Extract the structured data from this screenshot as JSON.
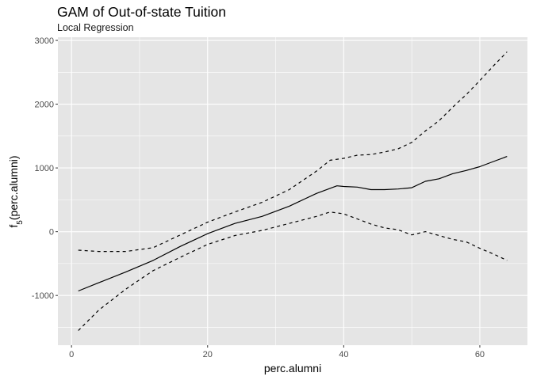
{
  "chart_data": {
    "type": "line",
    "title": "GAM of Out-of-state Tuition",
    "subtitle": "Local Regression",
    "xlabel": "perc.alumni",
    "ylabel": {
      "prefix": "f",
      "subscript": "5",
      "suffix": "(perc.alumni)"
    },
    "xlim": [
      -2,
      67
    ],
    "ylim": [
      -1780,
      3050
    ],
    "x_ticks": [
      0,
      20,
      40,
      60
    ],
    "x_tick_labels": [
      "0",
      "20",
      "40",
      "60"
    ],
    "y_ticks": [
      -1000,
      0,
      1000,
      2000,
      3000
    ],
    "y_tick_labels": [
      "-1000",
      "0",
      "1000",
      "2000",
      "3000"
    ],
    "grid": true,
    "legend": "none",
    "colors": {
      "panel": "#e5e5e5",
      "grid": "#ffffff",
      "line": "#000000"
    },
    "series": [
      {
        "style": "solid",
        "x": [
          1,
          4,
          8,
          12,
          16,
          20,
          24,
          28,
          32,
          36,
          39,
          40,
          42,
          44,
          46,
          48,
          50,
          52,
          54,
          56,
          58,
          60,
          62,
          64
        ],
        "y": [
          -930,
          -800,
          -630,
          -450,
          -230,
          -30,
          130,
          240,
          400,
          600,
          720,
          710,
          700,
          660,
          660,
          670,
          690,
          790,
          830,
          910,
          960,
          1020,
          1100,
          1180
        ]
      },
      {
        "style": "dashed",
        "x": [
          1,
          4,
          8,
          12,
          16,
          20,
          24,
          28,
          32,
          36,
          38,
          40,
          42,
          44,
          46,
          48,
          50,
          52,
          54,
          56,
          58,
          60,
          62,
          64
        ],
        "y": [
          -290,
          -310,
          -310,
          -250,
          -50,
          150,
          310,
          460,
          660,
          950,
          1120,
          1150,
          1200,
          1210,
          1250,
          1300,
          1400,
          1580,
          1740,
          1950,
          2150,
          2370,
          2600,
          2820
        ]
      },
      {
        "style": "dashed",
        "x": [
          1,
          4,
          8,
          12,
          16,
          20,
          24,
          28,
          32,
          36,
          38,
          40,
          42,
          44,
          46,
          48,
          50,
          52,
          54,
          56,
          58,
          60,
          62,
          64
        ],
        "y": [
          -1550,
          -1230,
          -900,
          -610,
          -400,
          -200,
          -60,
          20,
          130,
          240,
          310,
          280,
          200,
          120,
          60,
          30,
          -50,
          0,
          -60,
          -120,
          -160,
          -260,
          -350,
          -450
        ]
      }
    ]
  }
}
